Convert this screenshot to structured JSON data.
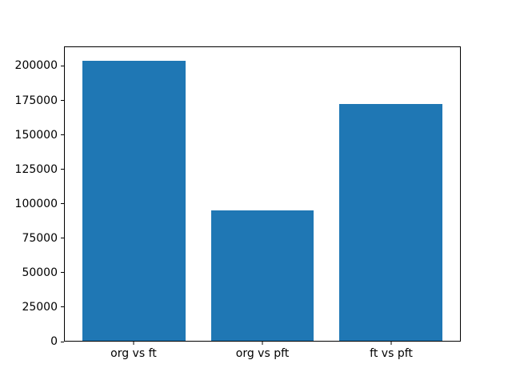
{
  "figure": {
    "background_color": "#ffffff",
    "spine_color": "#000000",
    "text_color": "#000000"
  },
  "chart_data": {
    "type": "bar",
    "title": "",
    "xlabel": "",
    "ylabel": "",
    "categories": [
      "org vs ft",
      "org vs pft",
      "ft vs pft"
    ],
    "values": [
      204000,
      95000,
      173000
    ],
    "bar_color": "#1f77b4",
    "bar_width_fraction": 0.8,
    "xlim": [
      -0.54,
      2.54
    ],
    "ylim": [
      0,
      214200
    ],
    "y_ticks": [
      0,
      25000,
      50000,
      75000,
      100000,
      125000,
      150000,
      175000,
      200000
    ],
    "y_tick_labels": [
      "0",
      "25000",
      "50000",
      "75000",
      "100000",
      "125000",
      "150000",
      "175000",
      "200000"
    ],
    "grid": false,
    "legend": null
  }
}
